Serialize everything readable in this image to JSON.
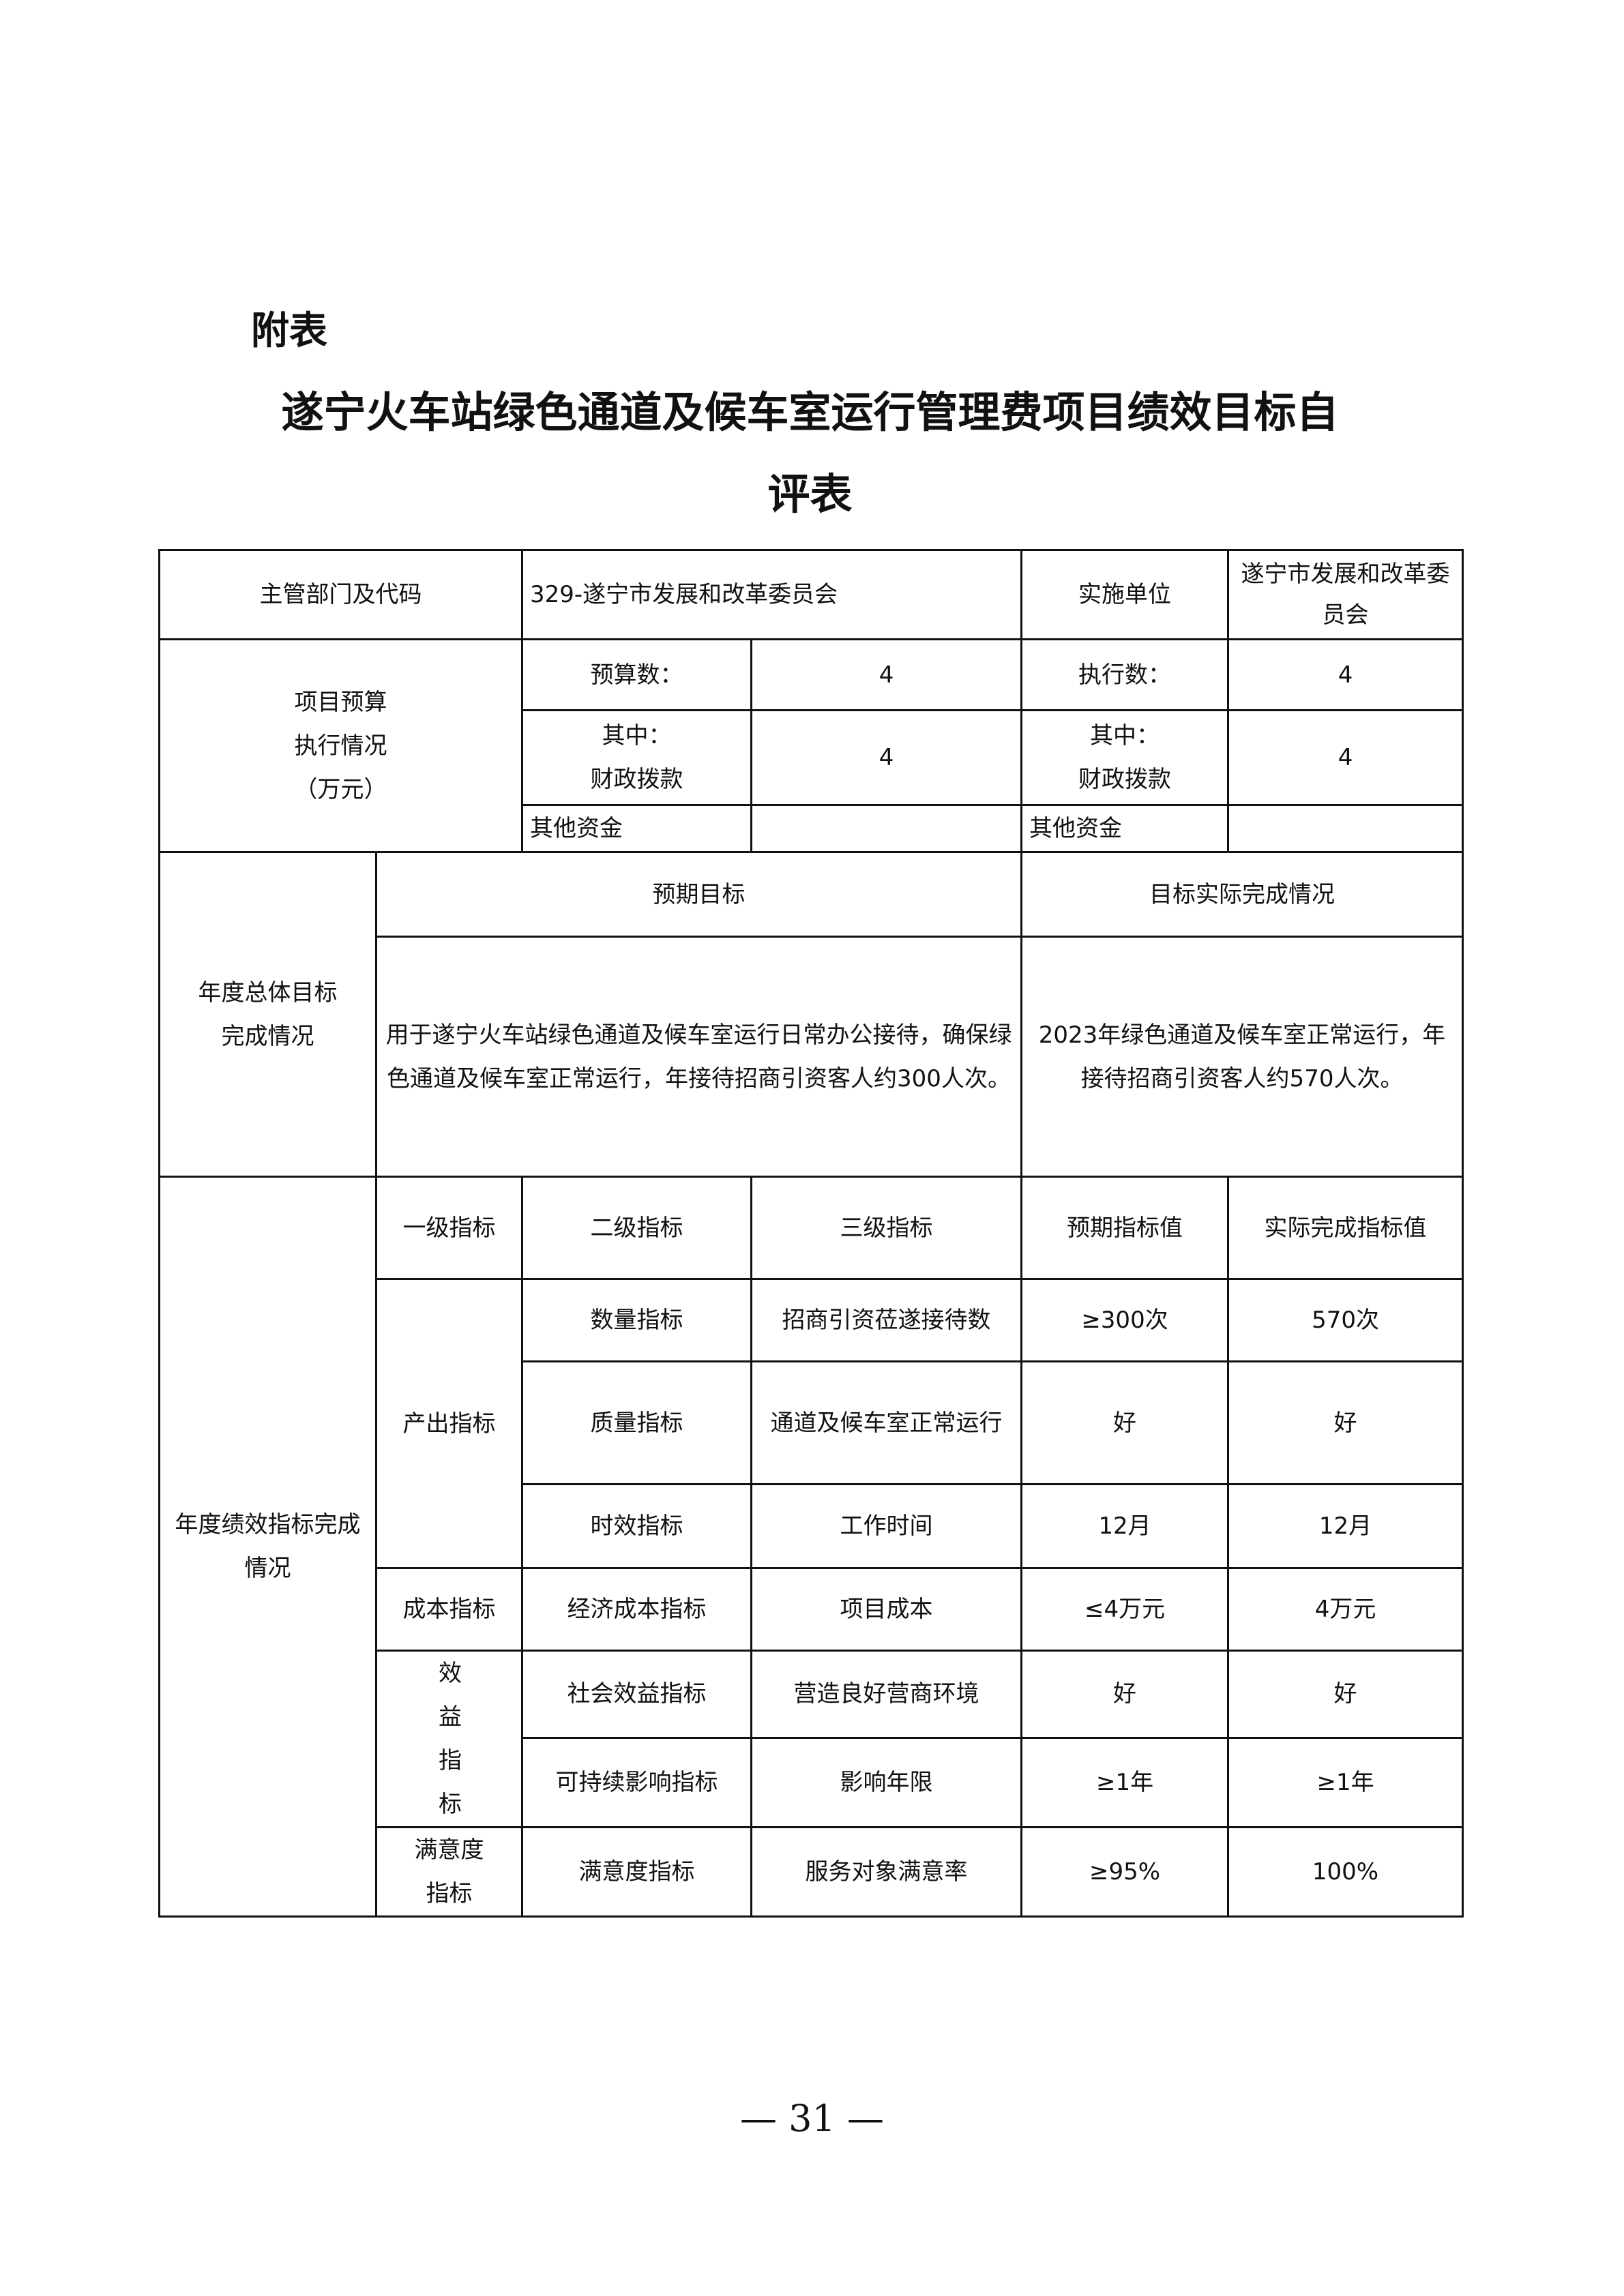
{
  "heading": "附表",
  "title_line1": "遂宁火车站绿色通道及候车室运行管理费项目绩效目标自",
  "title_line2": "评表",
  "dept": {
    "label": "主管部门及代码",
    "value": "329-遂宁市发展和改革委员会",
    "impl_label": "实施单位",
    "impl_value": "遂宁市发展和改革委员会"
  },
  "budget": {
    "label": "项目预算执行情况（万元）",
    "label_lines": [
      "项目预算",
      "执行情况",
      "（万元）"
    ],
    "budget_label": "预算数：",
    "budget_value": "4",
    "exec_label": "执行数：",
    "exec_value": "4",
    "fiscal_label_lines": [
      "其中：",
      "财政拨款"
    ],
    "fiscal_budget": "4",
    "fiscal_exec": "4",
    "other_label": "其他资金",
    "other_budget": "",
    "other_exec": ""
  },
  "goal": {
    "label_lines": [
      "年度总体目标",
      "完成情况"
    ],
    "expected_header": "预期目标",
    "actual_header": "目标实际完成情况",
    "expected_text": "用于遂宁火车站绿色通道及候车室运行日常办公接待，确保绿色通道及候车室正常运行，年接待招商引资客人约300人次。",
    "actual_text": "2023年绿色通道及候车室正常运行，年接待招商引资客人约570人次。"
  },
  "perf": {
    "label": "年度绩效指标完成情况",
    "headers": [
      "一级指标",
      "二级指标",
      "三级指标",
      "预期指标值",
      "实际完成指标值"
    ],
    "rows": [
      {
        "l1": "产出指标",
        "l2": "数量指标",
        "l3": "招商引资莅遂接待数",
        "expected": "≥300次",
        "actual": "570次"
      },
      {
        "l1": "产出指标",
        "l2": "质量指标",
        "l3": "通道及候车室正常运行",
        "expected": "好",
        "actual": "好"
      },
      {
        "l1": "产出指标",
        "l2": "时效指标",
        "l3": "工作时间",
        "expected": "12月",
        "actual": "12月"
      },
      {
        "l1": "成本指标",
        "l2": "经济成本指标",
        "l3": "项目成本",
        "expected": "≤4万元",
        "actual": "4万元"
      },
      {
        "l1": "效益指标",
        "l2": "社会效益指标",
        "l3": "营造良好营商环境",
        "expected": "好",
        "actual": "好"
      },
      {
        "l1": "效益指标",
        "l2": "可持续影响指标",
        "l3": "影响年限",
        "expected": "≥1年",
        "actual": "≥1年"
      },
      {
        "l1": "满意度指标",
        "l2": "满意度指标",
        "l3": "服务对象满意率",
        "expected": "≥95%",
        "actual": "100%"
      }
    ]
  },
  "page_number": "— 31 —"
}
